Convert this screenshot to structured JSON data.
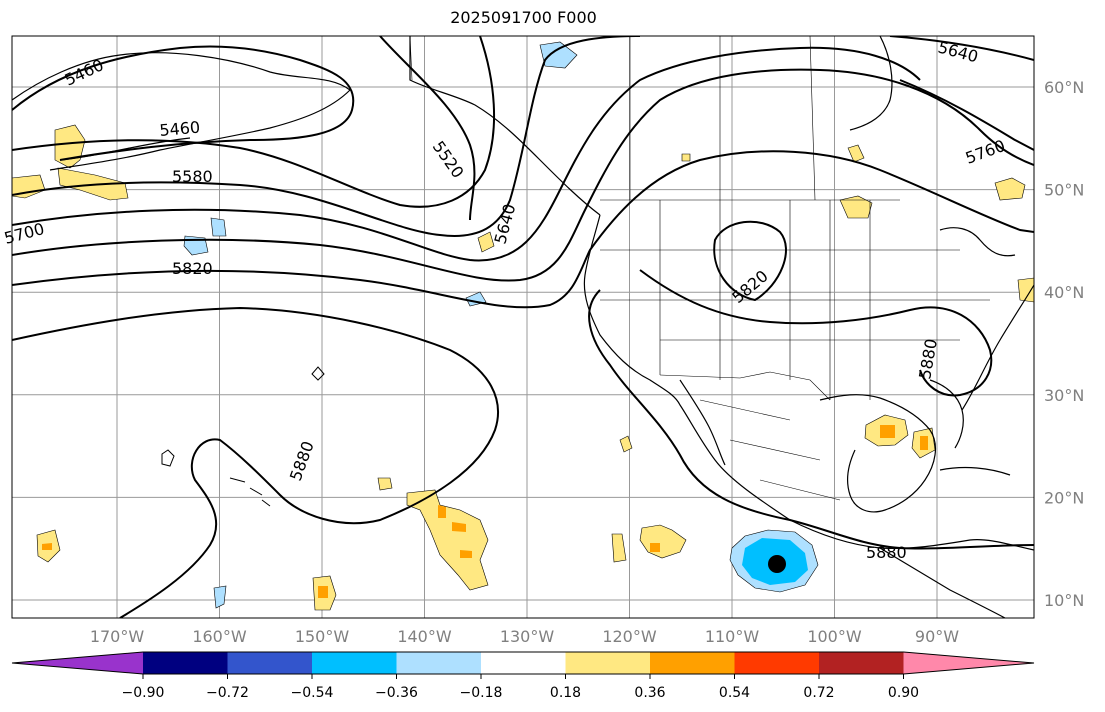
{
  "title": "2025091700 F000",
  "map": {
    "lat_ticks": [
      {
        "label": "60°N",
        "value": 60
      },
      {
        "label": "50°N",
        "value": 50
      },
      {
        "label": "40°N",
        "value": 40
      },
      {
        "label": "30°N",
        "value": 30
      },
      {
        "label": "20°N",
        "value": 20
      },
      {
        "label": "10°N",
        "value": 10
      }
    ],
    "lon_ticks": [
      {
        "label": "170°W",
        "value": -170
      },
      {
        "label": "160°W",
        "value": -160
      },
      {
        "label": "150°W",
        "value": -150
      },
      {
        "label": "140°W",
        "value": -140
      },
      {
        "label": "130°W",
        "value": -130
      },
      {
        "label": "120°W",
        "value": -120
      },
      {
        "label": "110°W",
        "value": -110
      },
      {
        "label": "100°W",
        "value": -100
      },
      {
        "label": "90°W",
        "value": -90
      }
    ],
    "contour_labels": [
      "5460",
      "5460",
      "5520",
      "5580",
      "5640",
      "5640",
      "5700",
      "5760",
      "5820",
      "5820",
      "5880",
      "5880",
      "5880"
    ],
    "colors": {
      "land_outline": "#000000",
      "grid": "#999999",
      "contour": "#000000",
      "marker": "#000000"
    }
  },
  "colorbar": {
    "colors": [
      "#9933cc",
      "#000080",
      "#3355cc",
      "#00bfff",
      "#aee0ff",
      "#ffffff",
      "#ffe882",
      "#ffa000",
      "#ff3a00",
      "#b22222",
      "#ff88aa"
    ],
    "ticks": [
      "−0.90",
      "−0.72",
      "−0.54",
      "−0.36",
      "−0.18",
      "0.18",
      "0.36",
      "0.54",
      "0.72",
      "0.90"
    ]
  }
}
